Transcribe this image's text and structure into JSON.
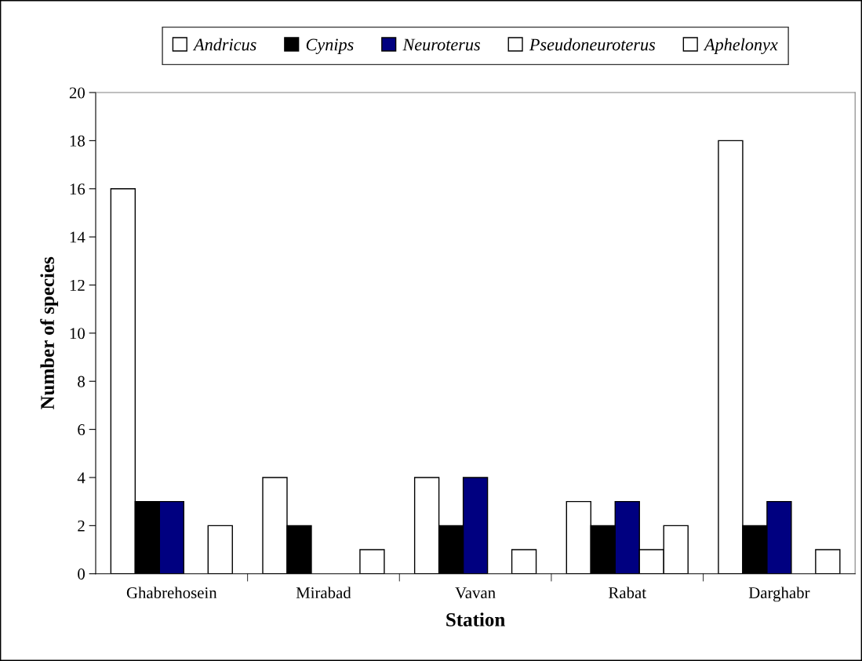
{
  "chart_data": {
    "type": "bar",
    "xlabel": "Station",
    "ylabel": "Number of species",
    "categories": [
      "Ghabrehosein",
      "Mirabad",
      "Vavan",
      "Rabat",
      "Darghabr"
    ],
    "series": [
      {
        "name": "Andricus",
        "color": "#ffffff",
        "values": [
          16,
          4,
          4,
          3,
          18
        ]
      },
      {
        "name": "Cynips",
        "color": "#000000",
        "values": [
          3,
          2,
          2,
          2,
          2
        ]
      },
      {
        "name": "Neuroterus",
        "color": "#000080",
        "values": [
          3,
          0,
          4,
          3,
          3
        ]
      },
      {
        "name": "Pseudoneuroterus",
        "color": "#ffffff",
        "values": [
          0,
          0,
          0,
          1,
          0
        ]
      },
      {
        "name": "Aphelonyx",
        "color": "#ffffff",
        "values": [
          2,
          1,
          1,
          2,
          1
        ]
      }
    ],
    "ylim": [
      0,
      20
    ],
    "yticks": [
      0,
      2,
      4,
      6,
      8,
      10,
      12,
      14,
      16,
      18,
      20
    ],
    "grid": false,
    "legend": "top"
  }
}
